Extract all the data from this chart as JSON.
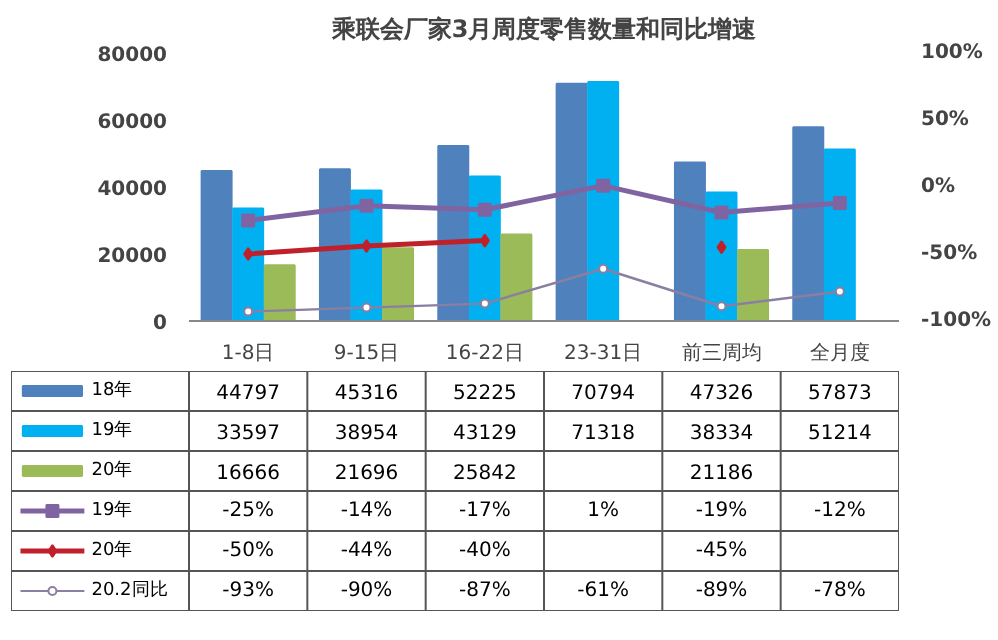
{
  "chart_data": {
    "type": "bar",
    "title": "乘联会厂家3月周度零售数量和同比增速",
    "categories": [
      "1-8日",
      "9-15日",
      "16-22日",
      "23-31日",
      "前三周均",
      "全月度"
    ],
    "ylim": [
      0,
      80000
    ],
    "yticks": [
      0,
      20000,
      40000,
      60000,
      80000
    ],
    "y2lim": [
      -100,
      100
    ],
    "y2ticks": [
      {
        "value": -100,
        "label": "-100%"
      },
      {
        "value": -50,
        "label": "-50%"
      },
      {
        "value": 0,
        "label": "0%"
      },
      {
        "value": 50,
        "label": "50%"
      },
      {
        "value": 100,
        "label": "100%"
      }
    ],
    "legend": "bottom",
    "series": [
      {
        "name": "18年",
        "color": "#4f81bd",
        "values": [
          44797,
          45316,
          52225,
          70794,
          47326,
          57873
        ],
        "value_labels": [
          "44797",
          "45316",
          "52225",
          "70794",
          "47326",
          "57873"
        ]
      },
      {
        "name": "19年",
        "color": "#00b0f0",
        "values": [
          33597,
          38954,
          43129,
          71318,
          38334,
          51214
        ],
        "value_labels": [
          "33597",
          "38954",
          "43129",
          "71318",
          "38334",
          "51214"
        ]
      },
      {
        "name": "20年",
        "color": "#9bbb59",
        "values": [
          16666,
          21696,
          25842,
          null,
          21186,
          null
        ],
        "value_labels": [
          "16666",
          "21696",
          "25842",
          null,
          "21186",
          null
        ]
      },
      {
        "name": "19年",
        "type": "line",
        "axis": "y2",
        "marker": "square",
        "color": "#8064a2",
        "values": [
          -25,
          -14,
          -17,
          1,
          -19,
          -12
        ],
        "value_labels": [
          "-25%",
          "-14%",
          "-17%",
          "1%",
          "-19%",
          "-12%"
        ]
      },
      {
        "name": "20年",
        "type": "line",
        "axis": "y2",
        "marker": "diamond",
        "color": "#c0202a",
        "values": [
          -50,
          -44,
          -40,
          null,
          -45,
          null
        ],
        "value_labels": [
          "-50%",
          "-44%",
          "-40%",
          null,
          "-45%",
          null
        ]
      },
      {
        "name": "20.2同比",
        "type": "line",
        "axis": "y2",
        "marker": "circle",
        "color": "#8a7fa0",
        "values": [
          -93,
          -90,
          -87,
          -61,
          -89,
          -78
        ],
        "value_labels": [
          "-93%",
          "-90%",
          "-87%",
          "-61%",
          "-89%",
          "-78%"
        ]
      }
    ]
  }
}
